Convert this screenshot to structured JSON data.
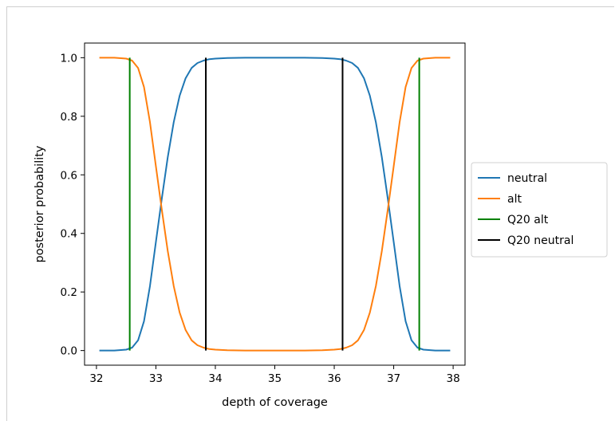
{
  "chart_data": {
    "type": "line",
    "xlabel": "depth of coverage",
    "ylabel": "posterior probability",
    "xlim": [
      31.8,
      38.2
    ],
    "ylim": [
      -0.05,
      1.05
    ],
    "xticks": [
      32,
      33,
      34,
      35,
      36,
      37,
      38
    ],
    "yticks": [
      0.0,
      0.2,
      0.4,
      0.6,
      0.8,
      1.0
    ],
    "xtick_labels": [
      "32",
      "33",
      "34",
      "35",
      "36",
      "37",
      "38"
    ],
    "ytick_labels": [
      "0.0",
      "0.2",
      "0.4",
      "0.6",
      "0.8",
      "1.0"
    ],
    "grid": false,
    "legend_placement": "outside-right",
    "x_range": [
      32.05,
      37.95
    ],
    "series": [
      {
        "name": "neutral",
        "color": "#1f77b4",
        "kind": "curve",
        "x": [
          32.05,
          32.3,
          32.5,
          32.6,
          32.7,
          32.8,
          32.9,
          33.0,
          33.1,
          33.2,
          33.3,
          33.4,
          33.5,
          33.6,
          33.7,
          33.8,
          33.9,
          34.0,
          34.2,
          34.5,
          35.0,
          35.5,
          35.8,
          36.0,
          36.1,
          36.2,
          36.3,
          36.4,
          36.5,
          36.6,
          36.7,
          36.8,
          36.9,
          37.0,
          37.1,
          37.2,
          37.3,
          37.4,
          37.5,
          37.7,
          37.95
        ],
        "y": [
          0.0,
          0.0,
          0.003,
          0.01,
          0.035,
          0.1,
          0.22,
          0.37,
          0.52,
          0.66,
          0.78,
          0.87,
          0.93,
          0.965,
          0.982,
          0.99,
          0.995,
          0.997,
          0.999,
          1.0,
          1.0,
          1.0,
          0.999,
          0.997,
          0.995,
          0.99,
          0.982,
          0.965,
          0.93,
          0.87,
          0.78,
          0.66,
          0.52,
          0.37,
          0.22,
          0.1,
          0.035,
          0.01,
          0.003,
          0.0,
          0.0
        ]
      },
      {
        "name": "alt",
        "color": "#ff7f0e",
        "kind": "curve",
        "x": [
          32.05,
          32.3,
          32.5,
          32.6,
          32.7,
          32.8,
          32.9,
          33.0,
          33.1,
          33.2,
          33.3,
          33.4,
          33.5,
          33.6,
          33.7,
          33.8,
          33.9,
          34.0,
          34.2,
          34.5,
          35.0,
          35.5,
          35.8,
          36.0,
          36.1,
          36.2,
          36.3,
          36.4,
          36.5,
          36.6,
          36.7,
          36.8,
          36.9,
          37.0,
          37.1,
          37.2,
          37.3,
          37.4,
          37.5,
          37.7,
          37.95
        ],
        "y": [
          1.0,
          1.0,
          0.997,
          0.99,
          0.965,
          0.9,
          0.78,
          0.63,
          0.48,
          0.34,
          0.22,
          0.13,
          0.07,
          0.035,
          0.018,
          0.01,
          0.005,
          0.003,
          0.001,
          0.0,
          0.0,
          0.0,
          0.001,
          0.003,
          0.005,
          0.01,
          0.018,
          0.035,
          0.07,
          0.13,
          0.22,
          0.34,
          0.48,
          0.63,
          0.78,
          0.9,
          0.965,
          0.99,
          0.997,
          1.0,
          1.0
        ]
      },
      {
        "name": "Q20 alt",
        "color": "#008000",
        "kind": "vlines",
        "x": [
          32.56,
          37.43
        ],
        "y": [
          0.0,
          1.0
        ]
      },
      {
        "name": "Q20 neutral",
        "color": "#000000",
        "kind": "vlines",
        "x": [
          33.84,
          36.14
        ],
        "y": [
          0.0,
          1.0
        ]
      }
    ]
  }
}
